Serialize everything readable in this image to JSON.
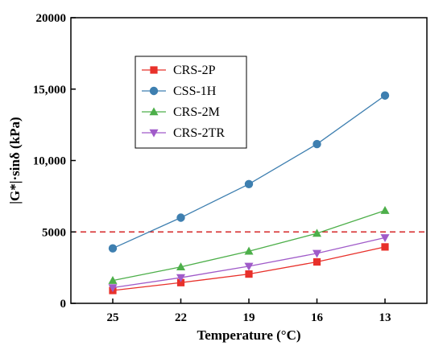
{
  "chart_data": {
    "type": "line",
    "xlabel": "Temperature (°C)",
    "ylabel": "|G*|·sinδ  (kPa)",
    "categories": [
      "25",
      "22",
      "19",
      "16",
      "13"
    ],
    "ylim": [
      0,
      20000
    ],
    "yticks": [
      {
        "value": 0,
        "label": "0"
      },
      {
        "value": 5000,
        "label": "5000"
      },
      {
        "value": 10000,
        "label": "10,000"
      },
      {
        "value": 15000,
        "label": "15,000"
      },
      {
        "value": 20000,
        "label": "20000"
      }
    ],
    "threshold": {
      "value": 5000,
      "color": "#d62728",
      "style": "dashed"
    },
    "legend_position": "upper-left",
    "series": [
      {
        "name": "CRS-2P",
        "marker": "square",
        "color": "#e8302a",
        "line_color": "#e8302a",
        "values": [
          900,
          1450,
          2050,
          2900,
          3950
        ]
      },
      {
        "name": "CSS-1H",
        "marker": "circle",
        "color": "#3e7fb0",
        "line_color": "#3e7fb0",
        "values": [
          3850,
          6000,
          8350,
          11150,
          14550
        ]
      },
      {
        "name": "CRS-2M",
        "marker": "triangle-up",
        "color": "#4daf4a",
        "line_color": "#4daf4a",
        "values": [
          1600,
          2550,
          3650,
          4900,
          6500
        ]
      },
      {
        "name": "CRS-2TR",
        "marker": "triangle-down",
        "color": "#a05bc9",
        "line_color": "#a05bc9",
        "values": [
          1100,
          1800,
          2600,
          3500,
          4600
        ]
      }
    ]
  }
}
